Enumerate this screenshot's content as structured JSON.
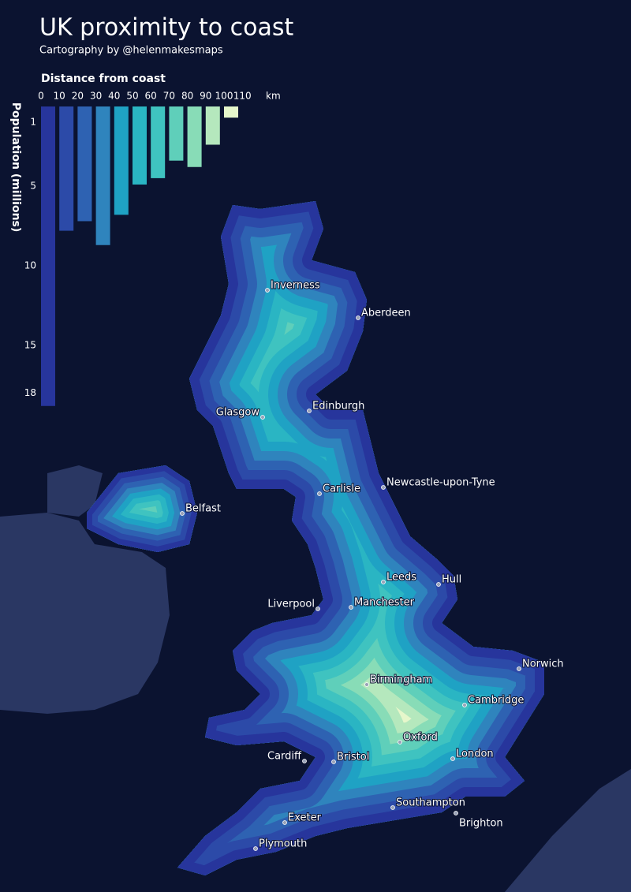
{
  "title": "UK proximity to coast",
  "subtitle": "Cartography by @helenmakesmaps",
  "chart_data": {
    "type": "histogram",
    "title": "Distance from coast",
    "x_label": "km",
    "y_label": "Population (millions)",
    "bins": [
      0,
      10,
      20,
      30,
      40,
      50,
      60,
      70,
      80,
      90,
      100,
      110
    ],
    "values": [
      18.8,
      7.8,
      7.2,
      8.7,
      6.8,
      4.9,
      4.5,
      3.4,
      3.8,
      2.4,
      0.7
    ],
    "colors": [
      "#27359c",
      "#2c4aa8",
      "#2e62b2",
      "#2f84bd",
      "#1fa2c4",
      "#2ab5c3",
      "#3fc3c0",
      "#5fcfba",
      "#88dcb7",
      "#b5e8bd",
      "#e6f7cb"
    ],
    "xticks": [
      0,
      10,
      20,
      30,
      40,
      50,
      60,
      70,
      80,
      90,
      100,
      110
    ],
    "ylim": [
      0,
      18.8
    ],
    "yticks": [
      1,
      5,
      10,
      15,
      18
    ]
  },
  "map": {
    "cities": [
      "Inverness",
      "Aberdeen",
      "Edinburgh",
      "Glasgow",
      "Carlisle",
      "Newcastle-upon-Tyne",
      "Belfast",
      "Leeds",
      "Hull",
      "Liverpool",
      "Manchester",
      "Norwich",
      "Birmingham",
      "Cambridge",
      "Oxford",
      "Cardiff",
      "Bristol",
      "London",
      "Southampton",
      "Brighton",
      "Exeter",
      "Plymouth"
    ]
  }
}
